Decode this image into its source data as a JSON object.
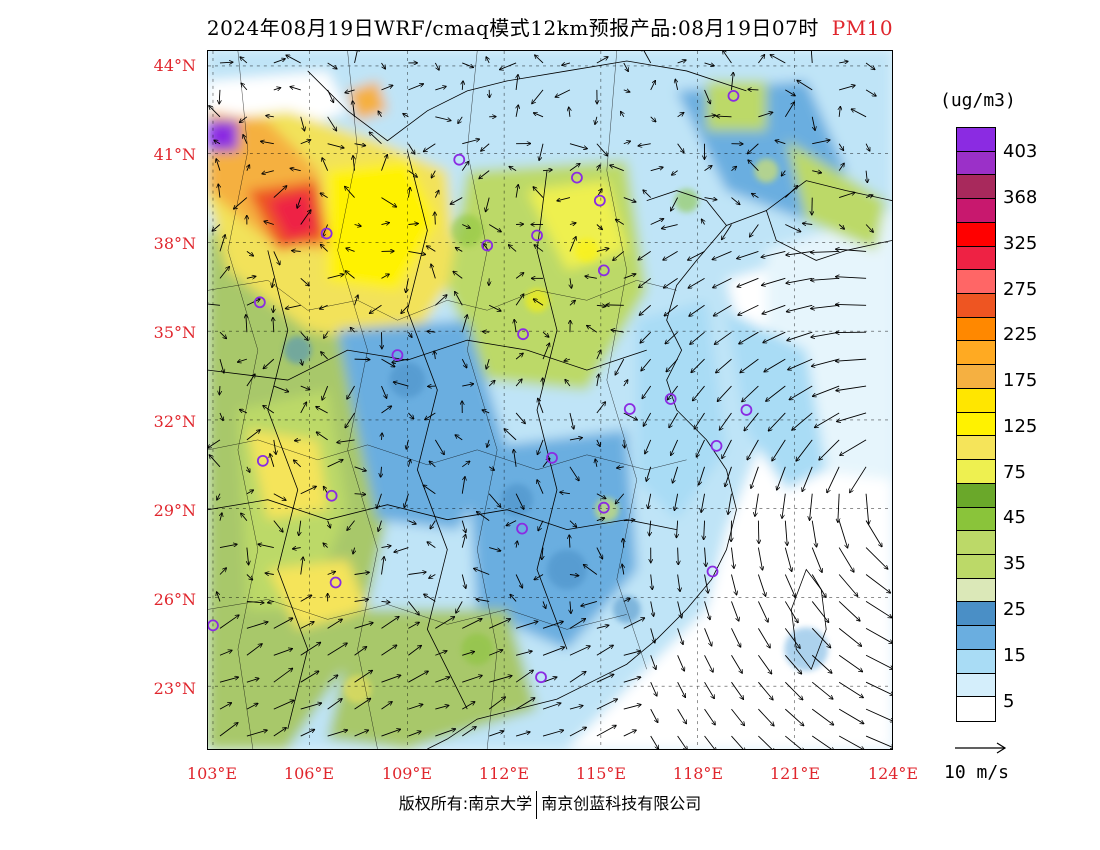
{
  "title": {
    "main": "2024年08月19日WRF/cmaq模式12km预报产品:08月19日07时",
    "pollutant": "PM10",
    "pollutant_color": "#e0262d"
  },
  "map": {
    "lat_labels": [
      "44°N",
      "41°N",
      "38°N",
      "35°N",
      "32°N",
      "29°N",
      "26°N",
      "23°N"
    ],
    "lon_labels": [
      "103°E",
      "106°E",
      "109°E",
      "112°E",
      "115°E",
      "118°E",
      "121°E",
      "124°E"
    ],
    "axis_label_color": "#e0262d",
    "lon_range": [
      103,
      124
    ],
    "lat_range": [
      21.9,
      44.8
    ],
    "site_marker_color": "#8a2be2",
    "site_count": 24
  },
  "colorbar": {
    "unit": "(ug/m3)",
    "labels": [
      "403",
      "368",
      "325",
      "275",
      "225",
      "175",
      "125",
      "75",
      "45",
      "35",
      "25",
      "15",
      "5"
    ],
    "colors": [
      "#8b2be2",
      "#9b30c8",
      "#a8295c",
      "#c8186e",
      "#ff0000",
      "#ee2244",
      "#ff6666",
      "#ee5522",
      "#ff8800",
      "#ffaa22",
      "#f5b041",
      "#ffe600",
      "#fff200",
      "#f5e45a",
      "#eef050",
      "#6aa82a",
      "#8ac43a",
      "#bcd968",
      "#bcd968",
      "#dbe8b8",
      "#4a8fc6",
      "#6aaee0",
      "#a9dcf5",
      "#d4eefb",
      "#ffffff"
    ]
  },
  "wind_reference": {
    "label": "10 m/s"
  },
  "footer": {
    "copyright_left": "版权所有:南京大学",
    "copyright_right": "南京创蓝科技有限公司"
  }
}
